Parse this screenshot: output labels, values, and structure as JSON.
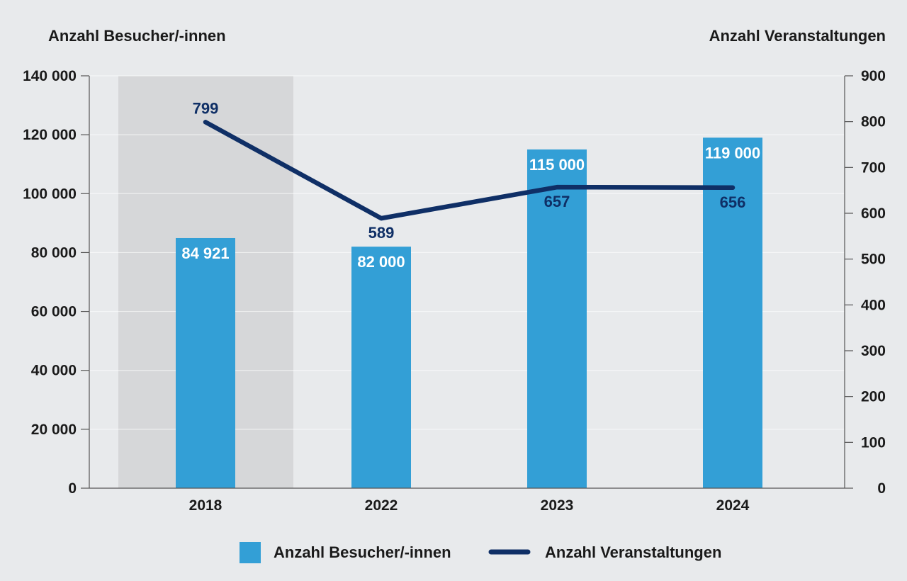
{
  "chart_data": {
    "type": "bar",
    "categories": [
      "2018",
      "2022",
      "2023",
      "2024"
    ],
    "highlight_category": "2018",
    "y_left": {
      "label": "Anzahl Besucher/-innen",
      "ylim": [
        0,
        140000
      ],
      "ticks": [
        0,
        20000,
        40000,
        60000,
        80000,
        100000,
        120000,
        140000
      ],
      "tick_labels": [
        "0",
        "20 000",
        "40 000",
        "60 000",
        "80 000",
        "100 000",
        "120 000",
        "140 000"
      ]
    },
    "y_right": {
      "label": "Anzahl Veranstaltungen",
      "ylim": [
        0,
        900
      ],
      "ticks": [
        0,
        100,
        200,
        300,
        400,
        500,
        600,
        700,
        800,
        900
      ],
      "tick_labels": [
        "0",
        "100",
        "200",
        "300",
        "400",
        "500",
        "600",
        "700",
        "800",
        "900"
      ]
    },
    "series": [
      {
        "name": "Anzahl Besucher/-innen",
        "type": "bar",
        "axis": "left",
        "color": "#339fd6",
        "values": [
          84921,
          82000,
          115000,
          119000
        ],
        "labels": [
          "84 921",
          "82 000",
          "115 000",
          "119 000"
        ]
      },
      {
        "name": "Anzahl Veranstaltungen",
        "type": "line",
        "axis": "right",
        "color": "#0f2f66",
        "values": [
          799,
          589,
          657,
          656
        ],
        "labels": [
          "799",
          "589",
          "657",
          "656"
        ]
      }
    ],
    "grid": true,
    "legend": "bottom-center"
  }
}
